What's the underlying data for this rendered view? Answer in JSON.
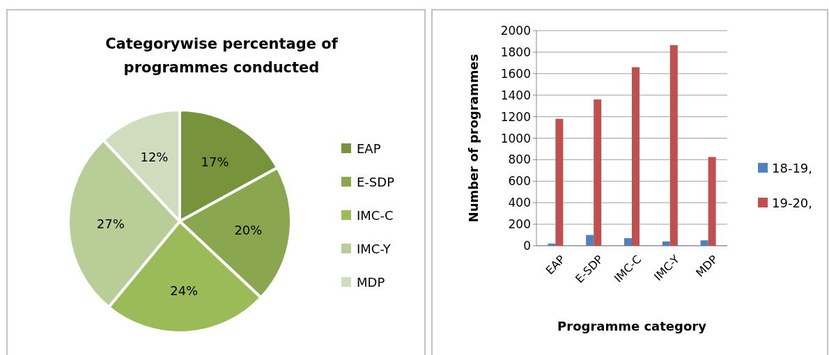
{
  "chart_data": [
    {
      "type": "pie",
      "title": "Categorywise percentage of programmes conducted",
      "categories": [
        "EAP",
        "E-SDP",
        "IMC-C",
        "IMC-Y",
        "MDP"
      ],
      "values": [
        17,
        20,
        24,
        27,
        12
      ],
      "colors": [
        "#77933c",
        "#8aa64e",
        "#9bbb59",
        "#b9cd96",
        "#d0dcbe"
      ],
      "value_labels": [
        "17%",
        "20%",
        "24%",
        "27%",
        "12%"
      ],
      "legend": "right"
    },
    {
      "type": "bar",
      "xlabel": "Programme category",
      "ylabel": "Number of programmes",
      "categories": [
        "EAP",
        "E-SDP",
        "IMC-C",
        "IMC-Y",
        "MDP"
      ],
      "series": [
        {
          "name": "18-19,",
          "color": "#4f81bd",
          "values": [
            20,
            100,
            70,
            40,
            50
          ]
        },
        {
          "name": "19-20,",
          "color": "#c0504d",
          "values": [
            1180,
            1360,
            1660,
            1865,
            825
          ]
        }
      ],
      "ylim": [
        0,
        2000
      ],
      "yticks": [
        0,
        200,
        400,
        600,
        800,
        1000,
        1200,
        1400,
        1600,
        1800,
        2000
      ],
      "grid": "y",
      "legend": "right"
    }
  ]
}
